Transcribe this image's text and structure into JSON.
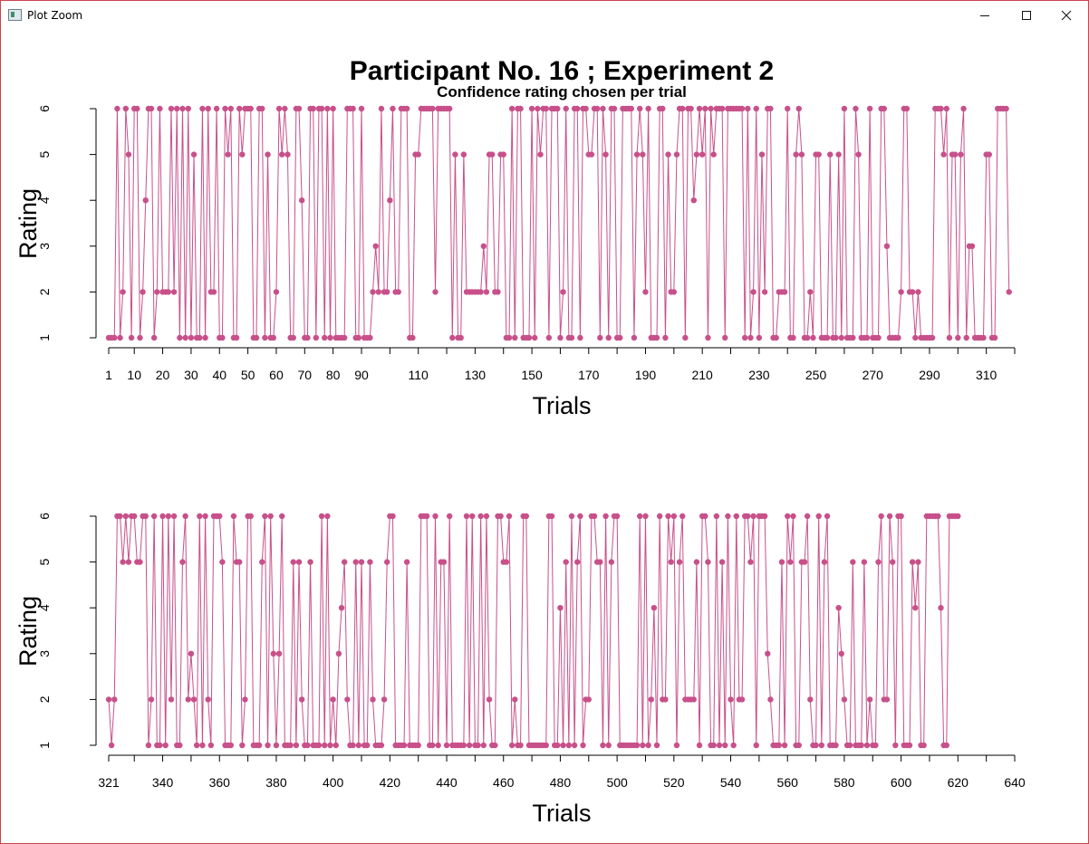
{
  "window": {
    "title": "Plot Zoom",
    "minimize_icon": "minimize-icon",
    "maximize_icon": "maximize-icon",
    "close_icon": "close-icon"
  },
  "colors": {
    "series": "#c8508a",
    "axis": "#000000",
    "background": "#ffffff"
  },
  "main_title": "Participant No. 16 ; Experiment 2",
  "subtitle": "Confidence rating chosen per trial",
  "chart_data": [
    {
      "type": "line",
      "title": "Participant No. 16 ; Experiment 2",
      "subtitle": "Confidence rating chosen per trial",
      "xlabel": "Trials",
      "ylabel": "Rating",
      "xlim": [
        1,
        320
      ],
      "ylim": [
        1,
        6
      ],
      "yticks": [
        1,
        2,
        3,
        4,
        5,
        6
      ],
      "xtick_labels": [
        1,
        10,
        20,
        30,
        40,
        50,
        60,
        70,
        80,
        90,
        110,
        130,
        150,
        170,
        190,
        210,
        230,
        250,
        270,
        290,
        310
      ],
      "grid": false,
      "markers": "filled-circle",
      "x_start": 1,
      "values": [
        1,
        1,
        1,
        6,
        1,
        2,
        6,
        5,
        1,
        6,
        6,
        1,
        2,
        4,
        6,
        6,
        1,
        2,
        6,
        2,
        2,
        2,
        6,
        2,
        6,
        1,
        6,
        1,
        6,
        1,
        5,
        1,
        1,
        6,
        1,
        6,
        2,
        2,
        6,
        1,
        1,
        6,
        5,
        6,
        1,
        1,
        6,
        5,
        6,
        6,
        6,
        1,
        1,
        6,
        6,
        1,
        5,
        1,
        1,
        2,
        6,
        5,
        6,
        5,
        1,
        1,
        6,
        6,
        4,
        1,
        1,
        6,
        6,
        1,
        6,
        6,
        1,
        6,
        1,
        6,
        1,
        1,
        1,
        1,
        6,
        6,
        6,
        1,
        1,
        6,
        1,
        1,
        1,
        2,
        3,
        2,
        6,
        2,
        2,
        4,
        6,
        2,
        2,
        6,
        6,
        6,
        1,
        1,
        5,
        5,
        6,
        6,
        6,
        6,
        6,
        2,
        6,
        6,
        6,
        6,
        6,
        1,
        5,
        1,
        1,
        5,
        2,
        2,
        2,
        2,
        2,
        2,
        3,
        2,
        5,
        5,
        2,
        2,
        5,
        5,
        1,
        1,
        6,
        1,
        6,
        6,
        1,
        1,
        1,
        6,
        1,
        6,
        5,
        6,
        6,
        1,
        6,
        6,
        6,
        1,
        2,
        6,
        1,
        1,
        6,
        6,
        1,
        6,
        6,
        5,
        5,
        6,
        6,
        1,
        6,
        5,
        1,
        6,
        6,
        1,
        1,
        6,
        6,
        6,
        6,
        1,
        5,
        6,
        5,
        2,
        6,
        1,
        1,
        1,
        6,
        6,
        1,
        5,
        2,
        2,
        5,
        6,
        6,
        1,
        6,
        6,
        4,
        5,
        6,
        5,
        6,
        1,
        6,
        5,
        6,
        6,
        6,
        1,
        6,
        6,
        6,
        6,
        6,
        6,
        1,
        6,
        1,
        2,
        6,
        1,
        5,
        2,
        6,
        6,
        1,
        1,
        2,
        2,
        2,
        6,
        1,
        1,
        5,
        6,
        5,
        1,
        1,
        2,
        1,
        5,
        5,
        1,
        1,
        1,
        5,
        1,
        1,
        5,
        1,
        6,
        1,
        1,
        1,
        6,
        5,
        1,
        1,
        1,
        6,
        1,
        1,
        1,
        6,
        6,
        3,
        1,
        1,
        1,
        1,
        2,
        6,
        6,
        2,
        2,
        1,
        2,
        1,
        1,
        1,
        1,
        1,
        6,
        6,
        6,
        5,
        6,
        1,
        5,
        5,
        1,
        5,
        6,
        1,
        3,
        3,
        1,
        1,
        1,
        1,
        5,
        5,
        1,
        1,
        6,
        6,
        6,
        6,
        2
      ]
    },
    {
      "type": "line",
      "xlabel": "Trials",
      "ylabel": "Rating",
      "xlim": [
        321,
        640
      ],
      "ylim": [
        1,
        6
      ],
      "yticks": [
        1,
        2,
        3,
        4,
        5,
        6
      ],
      "xtick_labels": [
        321,
        340,
        360,
        380,
        400,
        420,
        440,
        460,
        480,
        500,
        520,
        540,
        560,
        580,
        600,
        620,
        640
      ],
      "grid": false,
      "markers": "filled-circle",
      "x_start": 321,
      "values": [
        2,
        1,
        2,
        6,
        6,
        5,
        6,
        5,
        6,
        6,
        5,
        5,
        6,
        6,
        1,
        2,
        6,
        1,
        1,
        6,
        1,
        6,
        2,
        6,
        1,
        1,
        5,
        6,
        2,
        3,
        2,
        1,
        6,
        1,
        6,
        2,
        1,
        6,
        6,
        6,
        5,
        1,
        1,
        1,
        6,
        5,
        5,
        1,
        2,
        6,
        6,
        1,
        1,
        1,
        5,
        6,
        1,
        6,
        3,
        1,
        3,
        6,
        1,
        1,
        1,
        5,
        1,
        5,
        2,
        1,
        1,
        5,
        1,
        1,
        1,
        6,
        1,
        6,
        1,
        2,
        1,
        3,
        4,
        5,
        2,
        1,
        1,
        5,
        1,
        5,
        1,
        1,
        5,
        2,
        1,
        1,
        1,
        2,
        5,
        6,
        6,
        1,
        1,
        1,
        1,
        5,
        1,
        1,
        1,
        1,
        6,
        6,
        6,
        1,
        1,
        6,
        1,
        5,
        5,
        1,
        6,
        1,
        1,
        1,
        1,
        1,
        6,
        1,
        6,
        1,
        1,
        6,
        1,
        6,
        2,
        1,
        1,
        6,
        6,
        5,
        5,
        6,
        1,
        2,
        1,
        1,
        6,
        6,
        1,
        1,
        1,
        1,
        1,
        1,
        1,
        6,
        6,
        1,
        1,
        4,
        1,
        5,
        1,
        6,
        1,
        5,
        6,
        1,
        2,
        2,
        6,
        6,
        5,
        5,
        1,
        6,
        1,
        5,
        6,
        6,
        1,
        1,
        1,
        1,
        1,
        1,
        1,
        6,
        1,
        6,
        1,
        2,
        4,
        1,
        6,
        2,
        2,
        6,
        5,
        6,
        1,
        5,
        6,
        2,
        2,
        2,
        2,
        5,
        1,
        6,
        6,
        5,
        1,
        1,
        6,
        1,
        5,
        1,
        6,
        2,
        1,
        6,
        2,
        2,
        6,
        6,
        5,
        6,
        1,
        6,
        6,
        6,
        3,
        2,
        1,
        1,
        1,
        5,
        1,
        6,
        5,
        6,
        1,
        1,
        5,
        5,
        6,
        2,
        1,
        1,
        6,
        1,
        5,
        6,
        1,
        1,
        1,
        4,
        3,
        2,
        1,
        1,
        5,
        1,
        1,
        1,
        5,
        1,
        2,
        1,
        1,
        5,
        6,
        2,
        2,
        6,
        5,
        1,
        6,
        6,
        1,
        1,
        1,
        5,
        4,
        5,
        1,
        1,
        6,
        6,
        6,
        6,
        6,
        4,
        1,
        1,
        6,
        6,
        6,
        6
      ]
    }
  ]
}
